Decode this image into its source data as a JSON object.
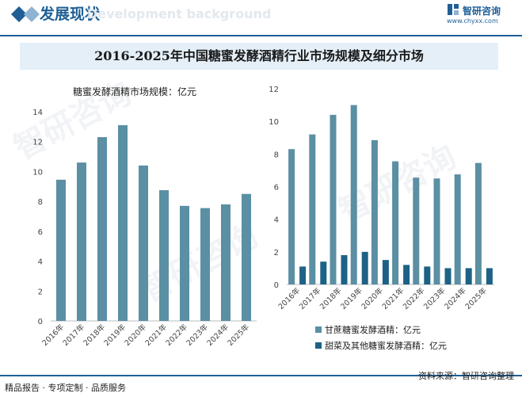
{
  "header": {
    "section_title": "发展现状",
    "watermark_text": "Development background",
    "brand_name": "智研咨询",
    "brand_url": "www.chyxx.com"
  },
  "main_title": "2016-2025年中国糖蜜发酵酒精行业市场规模及细分市场",
  "footer": {
    "left": "精品报告 · 专项定制 · 品质服务",
    "right": "资料来源：智研咨询整理"
  },
  "watermark": "智研咨询",
  "colors": {
    "accent": "#1f5f96",
    "series_primary": "#5b8fa3",
    "series_secondary": "#1d6286",
    "title_band": "#e4eff8"
  },
  "chart_data": [
    {
      "type": "bar",
      "title": "糖蜜发酵酒精市场规模：亿元",
      "categories": [
        "2016年",
        "2017年",
        "2018年",
        "2019年",
        "2020年",
        "2021年",
        "2022年",
        "2023年",
        "2024年",
        "2025年"
      ],
      "series": [
        {
          "values": [
            9.45,
            10.6,
            12.3,
            13.1,
            10.4,
            8.75,
            7.7,
            7.55,
            7.8,
            8.5
          ]
        }
      ],
      "yticks": [
        "0",
        "2",
        "4",
        "6",
        "8",
        "10",
        "12",
        "14"
      ],
      "ylim": [
        0,
        14
      ],
      "grid": false,
      "legend": "none"
    },
    {
      "type": "bar",
      "categories": [
        "2016年",
        "2017年",
        "2018年",
        "2019年",
        "2020年",
        "2021年",
        "2022年",
        "2023年",
        "2024年",
        "2025年"
      ],
      "series": [
        {
          "name": "甘蔗糖蜜发酵酒精：亿元",
          "values": [
            8.3,
            9.2,
            10.4,
            11.0,
            8.85,
            7.55,
            6.55,
            6.5,
            6.75,
            7.45
          ]
        },
        {
          "name": "甜菜及其他糖蜜发酵酒精：亿元",
          "values": [
            1.1,
            1.4,
            1.8,
            2.0,
            1.5,
            1.2,
            1.1,
            1.0,
            1.0,
            1.0
          ]
        }
      ],
      "yticks": [
        "0",
        "2",
        "4",
        "6",
        "8",
        "10",
        "12"
      ],
      "ylim": [
        0,
        12
      ],
      "grid": false,
      "legend": "bottom"
    }
  ]
}
